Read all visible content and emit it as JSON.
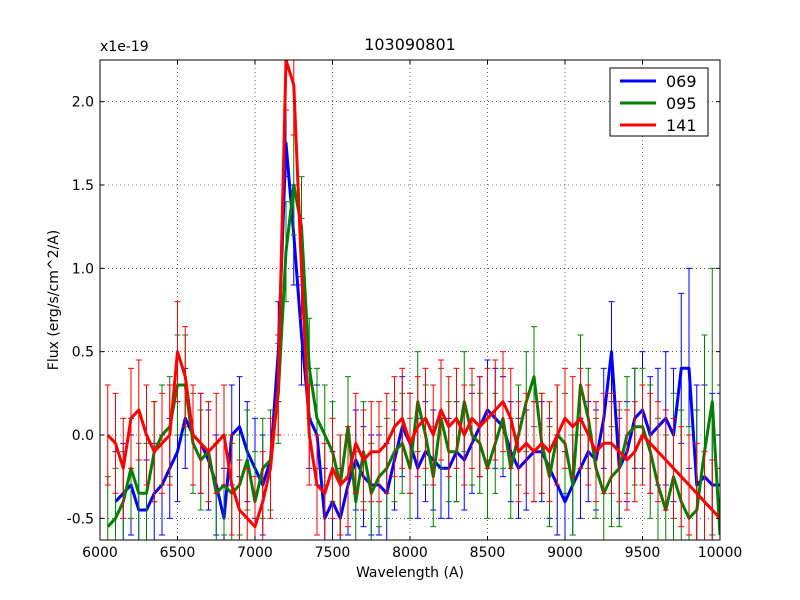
{
  "chart_data": {
    "type": "line",
    "title": "103090801",
    "xlabel": "Wavelength (A)",
    "ylabel": "Flux (erg/s/cm^2/A)",
    "y_offset_label": "x1e-19",
    "xlim": [
      6000,
      10000
    ],
    "ylim": [
      -0.63,
      2.25
    ],
    "xticks": [
      6000,
      6500,
      7000,
      7500,
      8000,
      8500,
      9000,
      9500,
      10000
    ],
    "xtick_labels": [
      "6000",
      "6500",
      "7000",
      "7500",
      "8000",
      "8500",
      "9000",
      "9500",
      "10000"
    ],
    "yticks": [
      -0.5,
      0.0,
      0.5,
      1.0,
      1.5,
      2.0
    ],
    "ytick_labels": [
      "-0.5",
      "0.0",
      "0.5",
      "1.0",
      "1.5",
      "2.0"
    ],
    "grid": true,
    "legend_position": "top-right",
    "series": [
      {
        "name": "069",
        "color": "#0000ff",
        "x": [
          6100,
          6150,
          6200,
          6250,
          6300,
          6350,
          6400,
          6450,
          6500,
          6550,
          6600,
          6650,
          6700,
          6750,
          6800,
          6850,
          6900,
          6950,
          7000,
          7050,
          7100,
          7150,
          7200,
          7250,
          7300,
          7350,
          7400,
          7450,
          7500,
          7550,
          7600,
          7650,
          7700,
          7750,
          7800,
          7850,
          7900,
          7950,
          8000,
          8050,
          8100,
          8150,
          8200,
          8250,
          8300,
          8350,
          8400,
          8450,
          8500,
          8550,
          8600,
          8650,
          8700,
          8750,
          8800,
          8850,
          8900,
          8950,
          9000,
          9050,
          9100,
          9150,
          9200,
          9250,
          9300,
          9350,
          9400,
          9450,
          9500,
          9550,
          9600,
          9650,
          9700,
          9750,
          9800,
          9850,
          9900,
          9950,
          10000
        ],
        "values": [
          -0.4,
          -0.35,
          -0.3,
          -0.45,
          -0.45,
          -0.35,
          -0.3,
          -0.2,
          -0.1,
          0.1,
          0.0,
          -0.05,
          -0.15,
          -0.3,
          -0.5,
          0.0,
          0.05,
          -0.1,
          -0.2,
          -0.3,
          -0.15,
          0.5,
          1.75,
          1.2,
          0.6,
          0.1,
          0.0,
          -0.5,
          -0.4,
          -0.5,
          -0.3,
          -0.15,
          -0.25,
          -0.3,
          -0.3,
          -0.35,
          -0.15,
          0.05,
          -0.05,
          -0.2,
          -0.1,
          -0.15,
          -0.2,
          -0.2,
          -0.1,
          -0.15,
          -0.05,
          0.05,
          0.15,
          0.1,
          0.05,
          -0.1,
          -0.2,
          -0.15,
          -0.1,
          -0.1,
          -0.2,
          -0.3,
          -0.4,
          -0.3,
          -0.2,
          -0.1,
          -0.15,
          0.1,
          0.5,
          -0.2,
          -0.1,
          0.1,
          0.15,
          0.0,
          0.05,
          0.1,
          0.0,
          0.4,
          0.4,
          -0.3,
          -0.25,
          -0.3,
          -0.3
        ],
        "errors": [
          0.3,
          0.3,
          0.3,
          0.3,
          0.3,
          0.3,
          0.3,
          0.3,
          0.3,
          0.3,
          0.3,
          0.3,
          0.3,
          0.3,
          0.3,
          0.3,
          0.3,
          0.3,
          0.3,
          0.3,
          0.3,
          0.3,
          0.2,
          0.3,
          0.3,
          0.3,
          0.3,
          0.3,
          0.3,
          0.3,
          0.3,
          0.3,
          0.3,
          0.3,
          0.3,
          0.3,
          0.3,
          0.3,
          0.3,
          0.3,
          0.3,
          0.3,
          0.3,
          0.3,
          0.3,
          0.3,
          0.3,
          0.3,
          0.3,
          0.3,
          0.3,
          0.3,
          0.3,
          0.3,
          0.3,
          0.3,
          0.3,
          0.3,
          0.3,
          0.3,
          0.3,
          0.3,
          0.3,
          0.3,
          0.3,
          0.3,
          0.3,
          0.3,
          0.35,
          0.35,
          0.35,
          0.4,
          0.4,
          0.45,
          0.6,
          0.6,
          0.55,
          0.55,
          0.55
        ]
      },
      {
        "name": "095",
        "color": "#008000",
        "x": [
          6050,
          6100,
          6150,
          6200,
          6250,
          6300,
          6350,
          6400,
          6450,
          6500,
          6550,
          6600,
          6650,
          6700,
          6750,
          6800,
          6850,
          6900,
          6950,
          7000,
          7050,
          7100,
          7150,
          7200,
          7250,
          7300,
          7350,
          7400,
          7450,
          7500,
          7550,
          7600,
          7650,
          7700,
          7750,
          7800,
          7850,
          7900,
          7950,
          8000,
          8050,
          8100,
          8150,
          8200,
          8250,
          8300,
          8350,
          8400,
          8450,
          8500,
          8550,
          8600,
          8650,
          8700,
          8750,
          8800,
          8850,
          8900,
          8950,
          9000,
          9050,
          9100,
          9150,
          9200,
          9250,
          9300,
          9350,
          9400,
          9450,
          9500,
          9550,
          9600,
          9650,
          9700,
          9750,
          9800,
          9850,
          9900,
          9950,
          10000
        ],
        "values": [
          -0.55,
          -0.5,
          -0.4,
          -0.2,
          -0.35,
          -0.35,
          -0.1,
          0.0,
          0.05,
          0.3,
          0.3,
          -0.05,
          -0.15,
          -0.1,
          -0.35,
          -0.3,
          -0.35,
          -0.3,
          -0.15,
          -0.4,
          -0.2,
          -0.15,
          0.25,
          1.1,
          1.5,
          1.25,
          0.4,
          0.1,
          0.0,
          -0.1,
          -0.3,
          0.05,
          -0.4,
          -0.1,
          -0.35,
          -0.25,
          -0.2,
          -0.1,
          -0.05,
          -0.2,
          0.2,
          0.0,
          -0.25,
          0.1,
          -0.1,
          -0.1,
          0.2,
          0.0,
          -0.05,
          -0.2,
          -0.05,
          0.1,
          -0.2,
          0.0,
          0.2,
          0.35,
          -0.05,
          -0.25,
          0.0,
          -0.05,
          -0.3,
          0.3,
          0.1,
          -0.2,
          -0.35,
          -0.25,
          -0.2,
          0.0,
          0.05,
          0.05,
          -0.1,
          -0.3,
          -0.45,
          -0.25,
          -0.4,
          -0.5,
          -0.45,
          -0.1,
          0.2,
          -0.6
        ],
        "errors": [
          0.3,
          0.3,
          0.3,
          0.3,
          0.3,
          0.3,
          0.3,
          0.3,
          0.3,
          0.3,
          0.3,
          0.3,
          0.3,
          0.3,
          0.3,
          0.3,
          0.3,
          0.3,
          0.3,
          0.3,
          0.3,
          0.3,
          0.3,
          0.3,
          0.3,
          0.3,
          0.3,
          0.3,
          0.3,
          0.3,
          0.3,
          0.3,
          0.3,
          0.3,
          0.3,
          0.3,
          0.3,
          0.3,
          0.3,
          0.3,
          0.3,
          0.3,
          0.3,
          0.3,
          0.3,
          0.3,
          0.3,
          0.3,
          0.3,
          0.3,
          0.3,
          0.3,
          0.3,
          0.3,
          0.3,
          0.3,
          0.3,
          0.3,
          0.3,
          0.3,
          0.3,
          0.3,
          0.3,
          0.3,
          0.3,
          0.3,
          0.35,
          0.35,
          0.35,
          0.35,
          0.4,
          0.4,
          0.45,
          0.5,
          0.55,
          0.55,
          0.6,
          0.7,
          0.8,
          0.9
        ]
      },
      {
        "name": "141",
        "color": "#ff0000",
        "x": [
          6050,
          6100,
          6150,
          6200,
          6250,
          6300,
          6350,
          6400,
          6450,
          6500,
          6550,
          6600,
          6650,
          6700,
          6750,
          6800,
          6850,
          6900,
          6950,
          7000,
          7050,
          7100,
          7150,
          7200,
          7250,
          7300,
          7350,
          7400,
          7450,
          7500,
          7550,
          7600,
          7650,
          7700,
          7750,
          7800,
          7850,
          7900,
          7950,
          8000,
          8050,
          8100,
          8150,
          8200,
          8250,
          8300,
          8350,
          8400,
          8450,
          8500,
          8550,
          8600,
          8650,
          8700,
          8750,
          8800,
          8850,
          8900,
          8950,
          9000,
          9050,
          9100,
          9150,
          9200,
          9250,
          9300,
          9350,
          9400,
          9450,
          9500,
          9550,
          9600,
          9650,
          9700,
          9750,
          9800,
          9850,
          9900,
          9950,
          10000
        ],
        "values": [
          0.0,
          -0.05,
          -0.2,
          0.1,
          0.15,
          0.0,
          -0.1,
          -0.05,
          0.0,
          0.5,
          0.35,
          0.0,
          -0.05,
          -0.1,
          -0.05,
          0.0,
          -0.3,
          -0.45,
          -0.5,
          -0.55,
          -0.4,
          -0.2,
          0.3,
          2.25,
          2.1,
          1.0,
          0.0,
          -0.3,
          -0.35,
          -0.2,
          -0.3,
          -0.25,
          -0.05,
          -0.15,
          -0.1,
          -0.1,
          -0.05,
          0.05,
          0.1,
          -0.05,
          0.05,
          0.1,
          0.0,
          0.15,
          0.05,
          0.1,
          0.0,
          0.1,
          0.05,
          0.1,
          0.15,
          0.2,
          0.1,
          -0.1,
          -0.05,
          -0.1,
          -0.05,
          -0.1,
          0.0,
          0.1,
          0.05,
          0.1,
          0.0,
          -0.1,
          -0.05,
          -0.05,
          -0.1,
          -0.15,
          -0.1,
          0.0,
          -0.05,
          -0.1,
          -0.15,
          -0.2,
          -0.25,
          -0.3,
          -0.35,
          -0.4,
          -0.45,
          -0.5
        ],
        "errors": [
          0.3,
          0.3,
          0.3,
          0.3,
          0.3,
          0.3,
          0.3,
          0.3,
          0.3,
          0.3,
          0.3,
          0.3,
          0.3,
          0.3,
          0.3,
          0.3,
          0.3,
          0.3,
          0.3,
          0.3,
          0.3,
          0.3,
          0.3,
          0.3,
          0.3,
          0.3,
          0.3,
          0.3,
          0.3,
          0.3,
          0.3,
          0.3,
          0.3,
          0.3,
          0.3,
          0.3,
          0.3,
          0.3,
          0.3,
          0.3,
          0.3,
          0.3,
          0.3,
          0.3,
          0.3,
          0.3,
          0.3,
          0.3,
          0.3,
          0.3,
          0.3,
          0.3,
          0.3,
          0.3,
          0.3,
          0.3,
          0.3,
          0.3,
          0.3,
          0.3,
          0.3,
          0.3,
          0.3,
          0.3,
          0.3,
          0.3,
          0.3,
          0.3,
          0.3,
          0.3,
          0.3,
          0.3,
          0.3,
          0.3,
          0.3,
          0.3,
          0.3,
          0.3,
          0.3,
          0.3
        ]
      }
    ]
  }
}
